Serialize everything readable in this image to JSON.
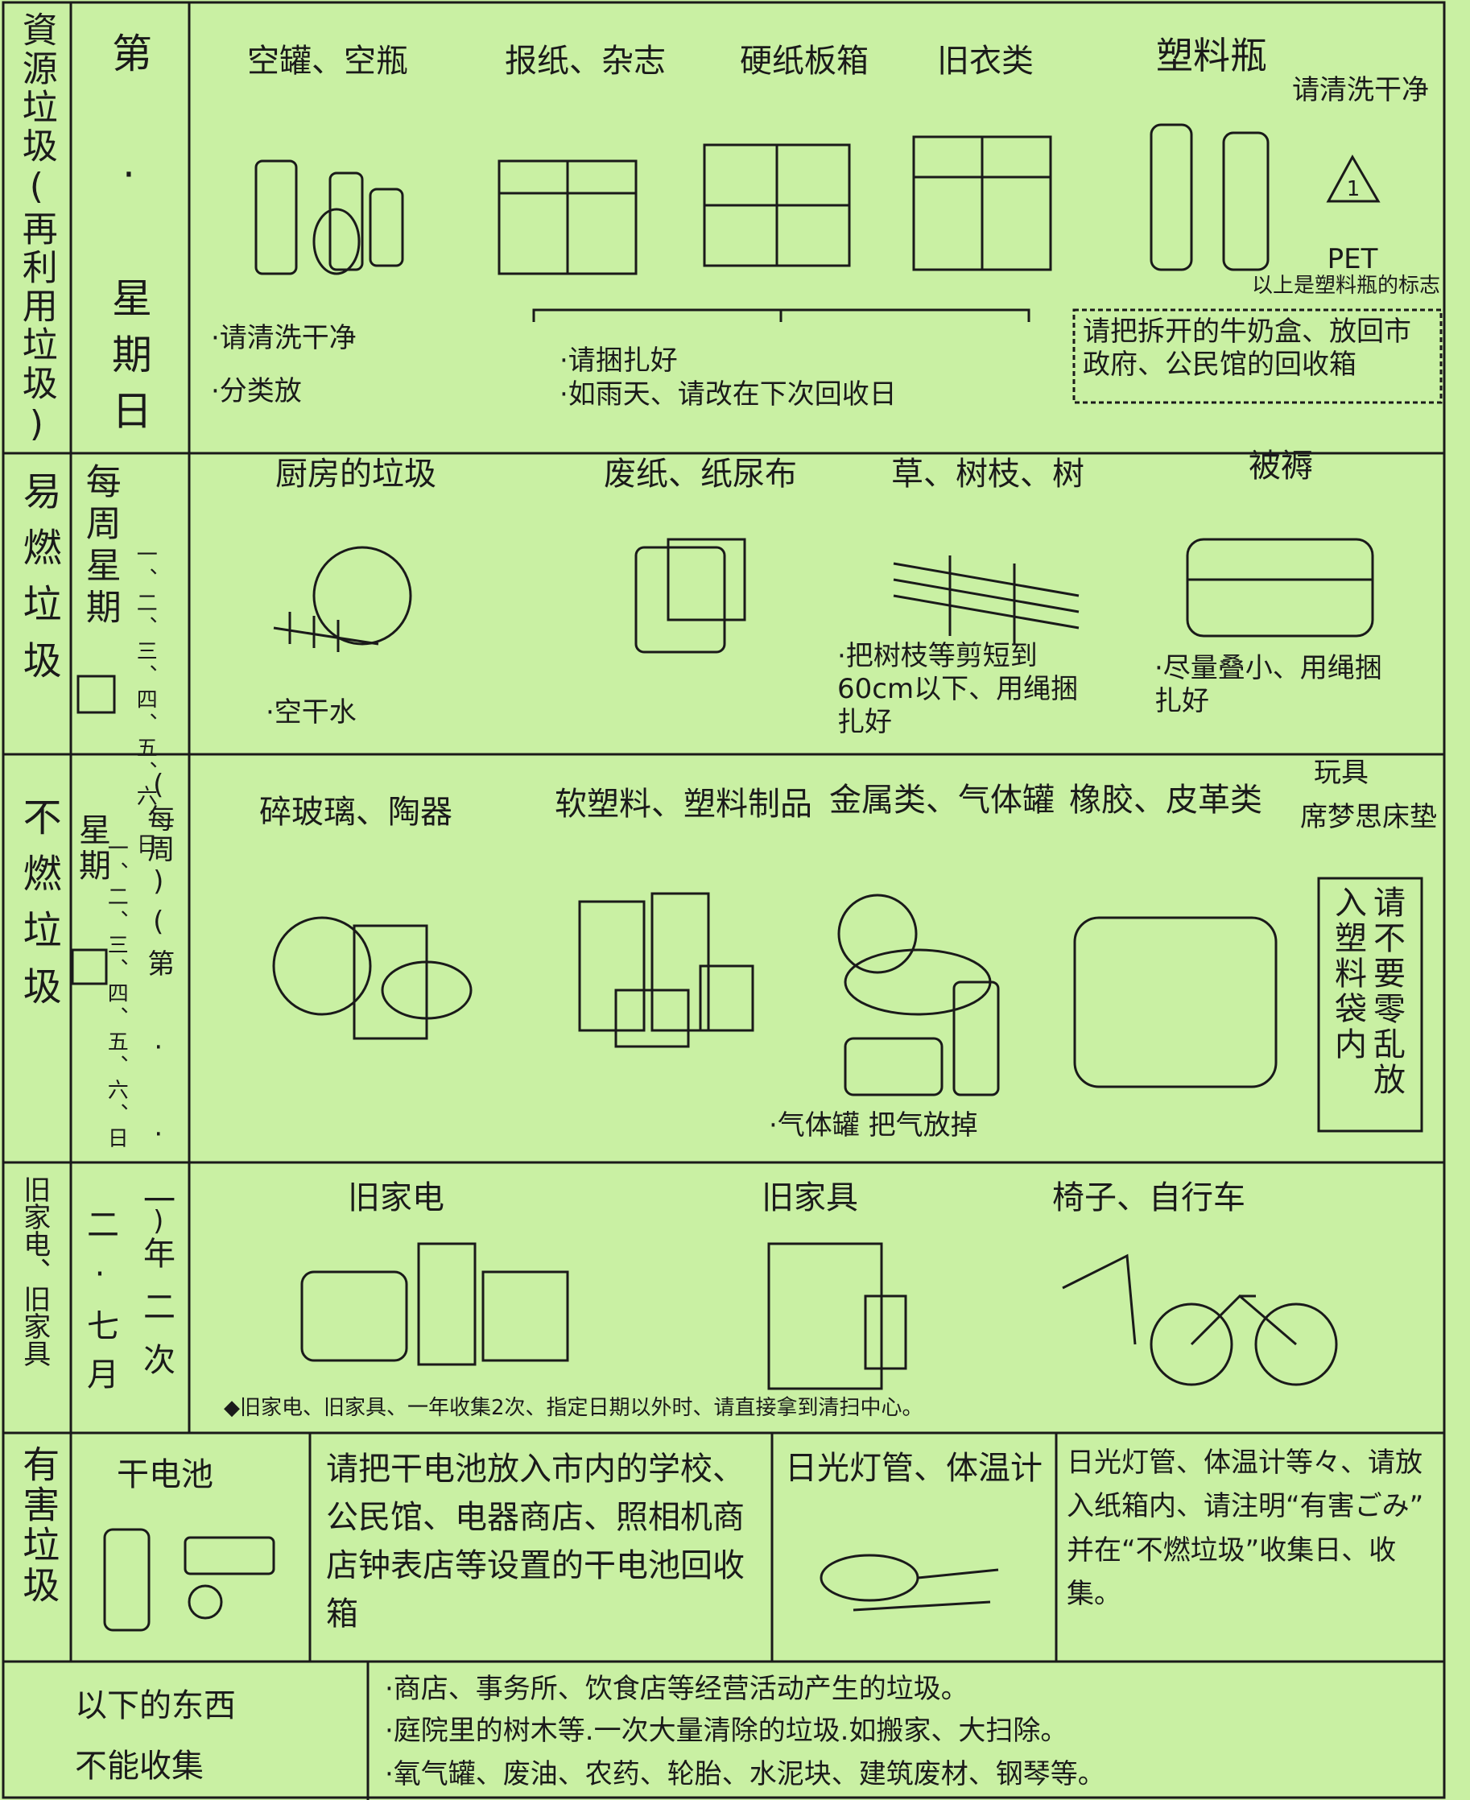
{
  "rows": [
    {
      "category": "資源垃圾(再利用垃圾)",
      "schedule": "第 · 星期日",
      "items": [
        "空罐、空瓶",
        "报纸、杂志",
        "硬纸板箱",
        "旧衣类",
        "塑料瓶"
      ],
      "notes": [
        "·请清洗干净",
        "·分类放",
        "·请捆扎好",
        "·如雨天、请改在下次回收日"
      ],
      "pet_note": "请清洗干净",
      "pet_mark": "1",
      "pet_label": "PET",
      "pet_caption": "以上是塑料瓶的标志",
      "box": "请把拆开的牛奶盒、放回市政府、公民馆的回收箱"
    },
    {
      "category": "易燃垃圾",
      "schedule": "每周星期",
      "days": "一、二、三、四、五、六、日",
      "items": [
        "厨房的垃圾",
        "废纸、纸尿布",
        "草、树枝、树",
        "被褥"
      ],
      "notes": [
        "·空干水",
        "·把树枝等剪短到60cm以下、用绳捆扎好",
        "·尽量叠小、用绳捆扎好"
      ]
    },
    {
      "category": "不燃垃圾",
      "schedule": "星期",
      "every_week": "(每周)",
      "days": "一、二、三、四、五、六、日",
      "nth": "(第 · · )",
      "items": [
        "碎玻璃、陶器",
        "软塑料、塑料制品",
        "金属类、气体罐",
        "橡胶、皮革类",
        "玩具",
        "席梦思床垫"
      ],
      "notes": [
        "·气体罐 把气放掉"
      ],
      "box": "请不要零乱放入塑料袋内"
    },
    {
      "category": "旧家电、旧家具",
      "schedule": "一年二次",
      "months": "二·七月",
      "items": [
        "旧家电",
        "旧家具",
        "椅子、自行车"
      ],
      "notes": [
        "◆旧家电、旧家具、一年收集2次、指定日期以外时、请直接拿到清扫中心。"
      ]
    },
    {
      "category": "有害垃圾",
      "items": [
        "干电池",
        "日光灯管、体温计"
      ],
      "notes": [
        "请把干电池放入市内的学校、公民馆、电器商店、照相机商店钟表店等设置的干电池回收箱",
        "日光灯管、体温计等々、请放入纸箱内、请注明“有害ごみ”并在“不燃垃圾”收集日、收集。"
      ]
    },
    {
      "category": [
        "以下的东西",
        "不能收集"
      ],
      "notes": [
        "·商店、事务所、饮食店等经营活动产生的垃圾。",
        "·庭院里的树木等.一次大量清除的垃圾.如搬家、大扫除。",
        "·氧气罐、废油、农药、轮胎、水泥块、建筑废材、钢琴等。"
      ]
    }
  ]
}
